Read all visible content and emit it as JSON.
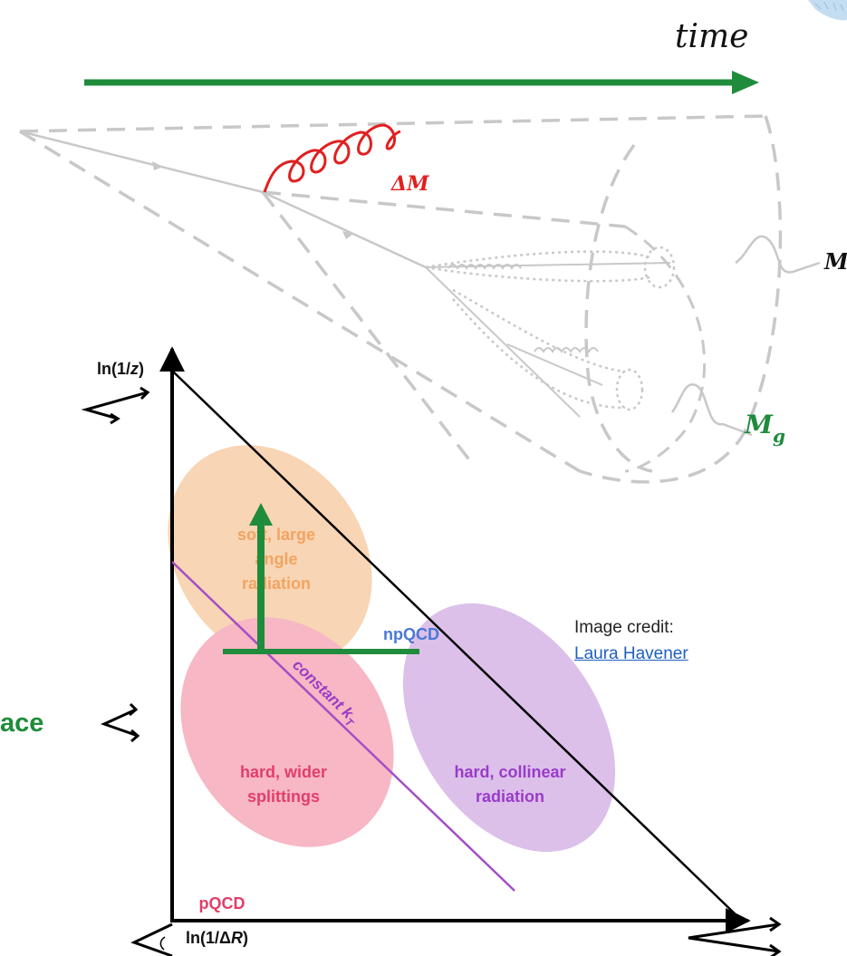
{
  "time_label": "time",
  "delta_m_label": "ΔM",
  "m_label": "M",
  "mg_label": {
    "base": "M",
    "sub": "g"
  },
  "y_axis_label": {
    "pre": "ln(1/",
    "var": "z",
    "post": ")"
  },
  "x_axis_label": {
    "pre": "ln(1/Δ",
    "var": "R",
    "post": ")"
  },
  "regions": {
    "soft": [
      "soft, large",
      "angle",
      "radiation"
    ],
    "hard_wide": [
      "hard, wider",
      "splittings"
    ],
    "hard_collinear": [
      "hard, collinear",
      "radiation"
    ],
    "np_qcd": "npQCD",
    "p_qcd": "pQCD",
    "constant_kt": {
      "text": "constant k",
      "sub": "T"
    }
  },
  "left_cut_text": "ace",
  "credit": {
    "line1": "Image credit:",
    "link": "Laura Havener"
  },
  "colors": {
    "green": "#1f8c3b",
    "orange_fill": "#f8d3b0",
    "orange_text": "#f2a462",
    "pink_fill": "#f7b7c4",
    "pink_text": "#e23e6a",
    "lavender_fill": "#dcc0ea",
    "purple_text": "#9a3bc8",
    "purple_line": "#a44ec6",
    "np_blue": "#4a78d4",
    "gray_sketch": "#c8c8c8",
    "red_gluon": "#e02020"
  }
}
